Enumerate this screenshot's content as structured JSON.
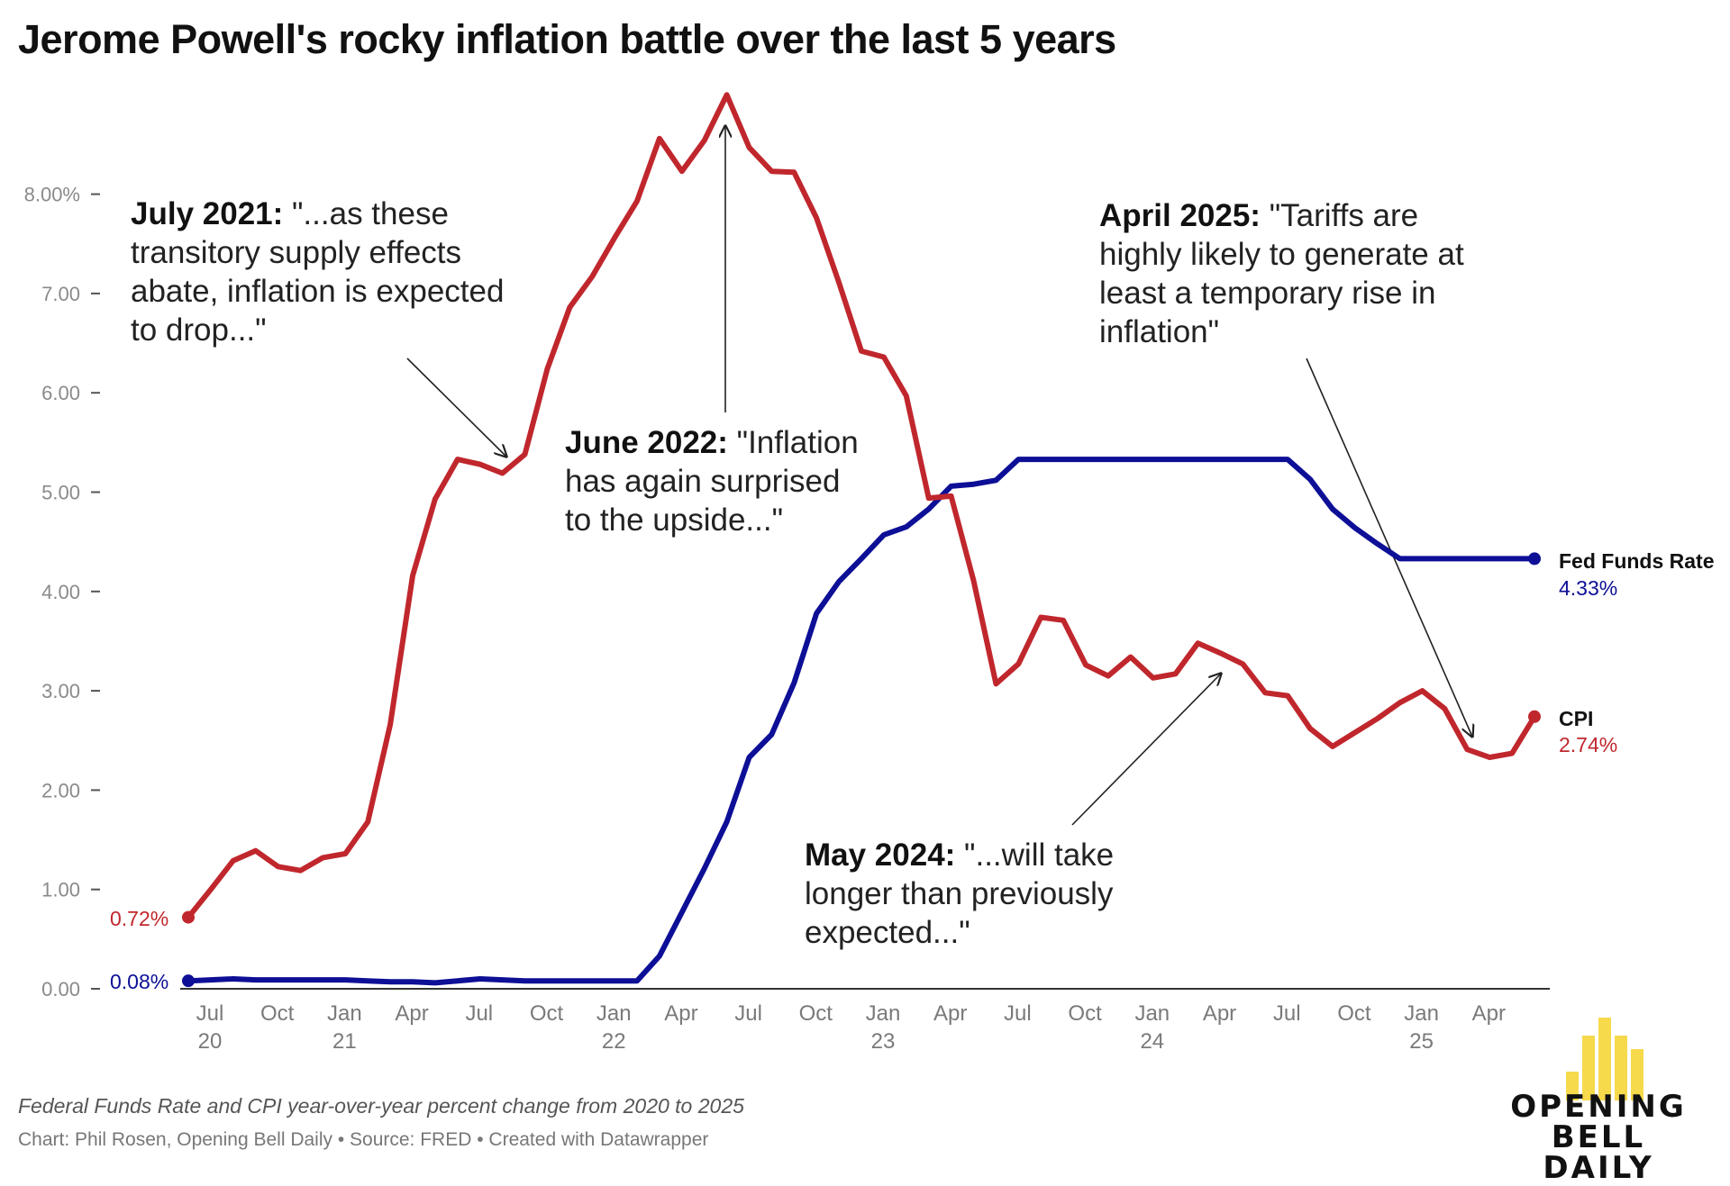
{
  "title": "Jerome Powell's rocky inflation battle over the last 5 years",
  "chart_data": {
    "type": "line",
    "ylim": [
      0,
      9
    ],
    "y_ticks": [
      "0.00",
      "1.00",
      "2.00",
      "3.00",
      "4.00",
      "5.00",
      "6.00",
      "7.00",
      "8.00%"
    ],
    "x_ticks": [
      {
        "label": "Jul",
        "year": "20"
      },
      {
        "label": "Oct",
        "year": ""
      },
      {
        "label": "Jan",
        "year": "21"
      },
      {
        "label": "Apr",
        "year": ""
      },
      {
        "label": "Jul",
        "year": ""
      },
      {
        "label": "Oct",
        "year": ""
      },
      {
        "label": "Jan",
        "year": "22"
      },
      {
        "label": "Apr",
        "year": ""
      },
      {
        "label": "Jul",
        "year": ""
      },
      {
        "label": "Oct",
        "year": ""
      },
      {
        "label": "Jan",
        "year": "23"
      },
      {
        "label": "Apr",
        "year": ""
      },
      {
        "label": "Jul",
        "year": ""
      },
      {
        "label": "Oct",
        "year": ""
      },
      {
        "label": "Jan",
        "year": "24"
      },
      {
        "label": "Apr",
        "year": ""
      },
      {
        "label": "Jul",
        "year": ""
      },
      {
        "label": "Oct",
        "year": ""
      },
      {
        "label": "Jan",
        "year": "25"
      },
      {
        "label": "Apr",
        "year": ""
      }
    ],
    "x_dates": [
      "2020-07",
      "2020-08",
      "2020-09",
      "2020-10",
      "2020-11",
      "2020-12",
      "2021-01",
      "2021-02",
      "2021-03",
      "2021-04",
      "2021-05",
      "2021-06",
      "2021-07",
      "2021-08",
      "2021-09",
      "2021-10",
      "2021-11",
      "2021-12",
      "2022-01",
      "2022-02",
      "2022-03",
      "2022-04",
      "2022-05",
      "2022-06",
      "2022-07",
      "2022-08",
      "2022-09",
      "2022-10",
      "2022-11",
      "2022-12",
      "2023-01",
      "2023-02",
      "2023-03",
      "2023-04",
      "2023-05",
      "2023-06",
      "2023-07",
      "2023-08",
      "2023-09",
      "2023-10",
      "2023-11",
      "2023-12",
      "2024-01",
      "2024-02",
      "2024-03",
      "2024-04",
      "2024-05",
      "2024-06",
      "2024-07",
      "2024-08",
      "2024-09",
      "2024-10",
      "2024-11",
      "2024-12",
      "2025-01",
      "2025-02",
      "2025-03",
      "2025-04",
      "2025-05",
      "2025-06",
      "2025-07"
    ],
    "series": [
      {
        "name": "CPI",
        "color": "#c0272d",
        "start_label": "0.72%",
        "end_label": "2.74%",
        "values": [
          0.72,
          1.0,
          1.29,
          1.39,
          1.23,
          1.19,
          1.32,
          1.36,
          1.68,
          2.66,
          4.16,
          4.93,
          5.33,
          5.28,
          5.19,
          5.38,
          6.24,
          6.86,
          7.17,
          7.56,
          7.93,
          8.56,
          8.23,
          8.54,
          9.0,
          8.47,
          8.23,
          8.22,
          7.76,
          7.11,
          6.42,
          6.36,
          5.97,
          4.94,
          4.96,
          4.11,
          3.07,
          3.27,
          3.74,
          3.71,
          3.26,
          3.15,
          3.34,
          3.13,
          3.17,
          3.48,
          3.38,
          3.27,
          2.98,
          2.95,
          2.62,
          2.44,
          2.58,
          2.72,
          2.88,
          3.0,
          2.82,
          2.41,
          2.33,
          2.37,
          2.74
        ]
      },
      {
        "name": "Fed Funds Rate",
        "color": "#0d0f96",
        "start_label": "0.08%",
        "end_label": "4.33%",
        "values": [
          0.08,
          0.09,
          0.1,
          0.09,
          0.09,
          0.09,
          0.09,
          0.09,
          0.08,
          0.07,
          0.07,
          0.06,
          0.08,
          0.1,
          0.09,
          0.08,
          0.08,
          0.08,
          0.08,
          0.08,
          0.08,
          0.33,
          0.77,
          1.21,
          1.68,
          2.33,
          2.56,
          3.08,
          3.78,
          4.1,
          4.33,
          4.57,
          4.65,
          4.83,
          5.06,
          5.08,
          5.12,
          5.33,
          5.33,
          5.33,
          5.33,
          5.33,
          5.33,
          5.33,
          5.33,
          5.33,
          5.33,
          5.33,
          5.33,
          5.33,
          5.13,
          4.83,
          4.64,
          4.48,
          4.33,
          4.33,
          4.33,
          4.33,
          4.33,
          4.33,
          4.33
        ]
      }
    ],
    "annotations": [
      {
        "bold": "July 2021:",
        "text": " \"...as these transitory supply effects abate, inflation is expected to drop...\""
      },
      {
        "bold": "June 2022:",
        "text": " \"Inflation has again surprised to the upside...\""
      },
      {
        "bold": "April 2025:",
        "text": " \"Tariffs are highly likely to generate at least a temporary rise in inflation\""
      },
      {
        "bold": "May 2024:",
        "text": " \"...will take longer than previously expected...\""
      }
    ]
  },
  "footer": {
    "description": "Federal Funds Rate and CPI year-over-year percent change from 2020 to 2025",
    "credit": "Chart: Phil Rosen, Opening Bell Daily • Source: FRED • Created with Datawrapper"
  },
  "logo": {
    "line1": "OPENING BELL",
    "line2": "DAILY",
    "color": "#f7d94c"
  }
}
